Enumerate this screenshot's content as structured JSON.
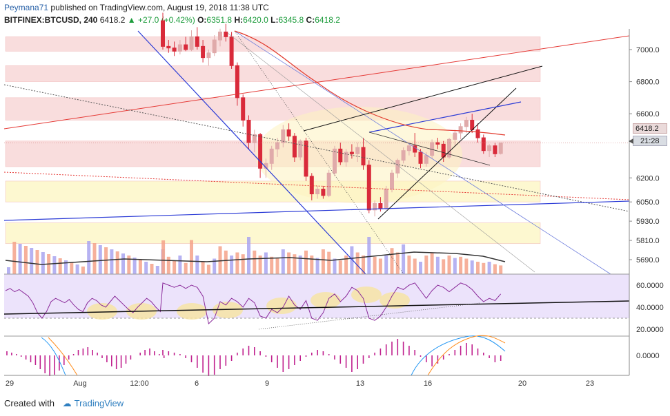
{
  "header": {
    "user": "Peymana71",
    "published": "published on TradingView.com, August 19, 2018 11:38 UTC",
    "symbol": "BITFINEX:BTCUSD, 240",
    "last": "6418.2",
    "change": "+27.0 (+0.42%)",
    "open_label": "O:",
    "open": "6351.8",
    "high_label": "H:",
    "high": "6420.0",
    "low_label": "L:",
    "low": "6345.8",
    "close_label": "C:",
    "close": "6418.2"
  },
  "price_badges": {
    "last_price": "6418.2",
    "countdown": "21:28"
  },
  "footer": {
    "created_with": "Created with",
    "brand": "TradingView"
  },
  "colors": {
    "up": "#e0aaaa",
    "down": "#d92a3a",
    "bull_band": "#f8d8d8",
    "yellow_band": "#fdf7c8",
    "rsi_bg": "#ece3fb",
    "rsi_line": "#8a2a9a",
    "macd_hist": "#c0208e",
    "ma": "#e23b2e"
  },
  "chart_data": {
    "type": "candlestick",
    "price_axis": {
      "ticks": [
        7000.0,
        6800.0,
        6600.0,
        6418.2,
        6200.0,
        6050.0,
        5930.0,
        5810.0,
        5690.0
      ]
    },
    "price_tick_labels": [
      "7000.0",
      "6800.0",
      "6600.0",
      "6200.0",
      "6050.0",
      "5930.0",
      "5810.0",
      "5690.0"
    ],
    "rsi_axis": {
      "ticks": [
        "60.0000",
        "40.0000",
        "20.0000"
      ]
    },
    "macd_axis": {
      "ticks": [
        "0.0000"
      ]
    },
    "x_tick_labels": [
      "29",
      "Aug",
      "12:00",
      "6",
      "9",
      "13",
      "16",
      "20",
      "23"
    ],
    "candles": [
      {
        "o": 7180,
        "h": 7230,
        "l": 7000,
        "c": 7020
      },
      {
        "o": 7020,
        "h": 7060,
        "l": 6980,
        "c": 7010
      },
      {
        "o": 7010,
        "h": 7050,
        "l": 6960,
        "c": 6990
      },
      {
        "o": 6990,
        "h": 7060,
        "l": 6970,
        "c": 7030
      },
      {
        "o": 7030,
        "h": 7080,
        "l": 6990,
        "c": 7000
      },
      {
        "o": 7000,
        "h": 7120,
        "l": 6990,
        "c": 7080
      },
      {
        "o": 7080,
        "h": 7140,
        "l": 7000,
        "c": 7020
      },
      {
        "o": 7020,
        "h": 7060,
        "l": 6920,
        "c": 6950
      },
      {
        "o": 6950,
        "h": 7000,
        "l": 6900,
        "c": 6980
      },
      {
        "o": 6980,
        "h": 7090,
        "l": 6960,
        "c": 7060
      },
      {
        "o": 7060,
        "h": 7130,
        "l": 7020,
        "c": 7110
      },
      {
        "o": 7110,
        "h": 7160,
        "l": 7050,
        "c": 7080
      },
      {
        "o": 7080,
        "h": 7110,
        "l": 6880,
        "c": 6900
      },
      {
        "o": 6900,
        "h": 6920,
        "l": 6650,
        "c": 6700
      },
      {
        "o": 6700,
        "h": 6720,
        "l": 6520,
        "c": 6560
      },
      {
        "o": 6560,
        "h": 6590,
        "l": 6380,
        "c": 6420
      },
      {
        "o": 6420,
        "h": 6500,
        "l": 6360,
        "c": 6470
      },
      {
        "o": 6470,
        "h": 6480,
        "l": 6200,
        "c": 6260
      },
      {
        "o": 6260,
        "h": 6320,
        "l": 6200,
        "c": 6290
      },
      {
        "o": 6290,
        "h": 6400,
        "l": 6250,
        "c": 6380
      },
      {
        "o": 6380,
        "h": 6450,
        "l": 6330,
        "c": 6420
      },
      {
        "o": 6420,
        "h": 6530,
        "l": 6390,
        "c": 6500
      },
      {
        "o": 6500,
        "h": 6540,
        "l": 6430,
        "c": 6460
      },
      {
        "o": 6460,
        "h": 6480,
        "l": 6300,
        "c": 6330
      },
      {
        "o": 6330,
        "h": 6440,
        "l": 6310,
        "c": 6430
      },
      {
        "o": 6430,
        "h": 6450,
        "l": 6180,
        "c": 6210
      },
      {
        "o": 6210,
        "h": 6230,
        "l": 6060,
        "c": 6100
      },
      {
        "o": 6100,
        "h": 6150,
        "l": 6070,
        "c": 6130
      },
      {
        "o": 6130,
        "h": 6150,
        "l": 6070,
        "c": 6090
      },
      {
        "o": 6090,
        "h": 6250,
        "l": 6080,
        "c": 6230
      },
      {
        "o": 6230,
        "h": 6400,
        "l": 6210,
        "c": 6380
      },
      {
        "o": 6380,
        "h": 6420,
        "l": 6280,
        "c": 6300
      },
      {
        "o": 6300,
        "h": 6380,
        "l": 6270,
        "c": 6360
      },
      {
        "o": 6360,
        "h": 6410,
        "l": 6320,
        "c": 6350
      },
      {
        "o": 6350,
        "h": 6420,
        "l": 6300,
        "c": 6390
      },
      {
        "o": 6390,
        "h": 6450,
        "l": 6250,
        "c": 6280
      },
      {
        "o": 6280,
        "h": 6310,
        "l": 5980,
        "c": 6000
      },
      {
        "o": 6000,
        "h": 6060,
        "l": 5960,
        "c": 6040
      },
      {
        "o": 6040,
        "h": 6080,
        "l": 5990,
        "c": 6010
      },
      {
        "o": 6010,
        "h": 6150,
        "l": 6000,
        "c": 6130
      },
      {
        "o": 6130,
        "h": 6250,
        "l": 6110,
        "c": 6230
      },
      {
        "o": 6230,
        "h": 6320,
        "l": 6200,
        "c": 6310
      },
      {
        "o": 6310,
        "h": 6390,
        "l": 6290,
        "c": 6370
      },
      {
        "o": 6370,
        "h": 6420,
        "l": 6340,
        "c": 6400
      },
      {
        "o": 6400,
        "h": 6480,
        "l": 6330,
        "c": 6360
      },
      {
        "o": 6360,
        "h": 6380,
        "l": 6260,
        "c": 6290
      },
      {
        "o": 6290,
        "h": 6360,
        "l": 6270,
        "c": 6340
      },
      {
        "o": 6340,
        "h": 6440,
        "l": 6320,
        "c": 6420
      },
      {
        "o": 6420,
        "h": 6450,
        "l": 6380,
        "c": 6410
      },
      {
        "o": 6410,
        "h": 6430,
        "l": 6300,
        "c": 6330
      },
      {
        "o": 6330,
        "h": 6450,
        "l": 6320,
        "c": 6440
      },
      {
        "o": 6440,
        "h": 6500,
        "l": 6400,
        "c": 6480
      },
      {
        "o": 6480,
        "h": 6540,
        "l": 6440,
        "c": 6520
      },
      {
        "o": 6520,
        "h": 6580,
        "l": 6480,
        "c": 6560
      },
      {
        "o": 6560,
        "h": 6600,
        "l": 6480,
        "c": 6500
      },
      {
        "o": 6500,
        "h": 6540,
        "l": 6420,
        "c": 6450
      },
      {
        "o": 6450,
        "h": 6470,
        "l": 6350,
        "c": 6370
      },
      {
        "o": 6370,
        "h": 6410,
        "l": 6330,
        "c": 6400
      },
      {
        "o": 6400,
        "h": 6420,
        "l": 6330,
        "c": 6350
      },
      {
        "o": 6351.8,
        "h": 6420.0,
        "l": 6345.8,
        "c": 6418.2
      }
    ],
    "volume": [
      40,
      28,
      22,
      30,
      18,
      55,
      30,
      20,
      15,
      25,
      45,
      38,
      30,
      35,
      32,
      60,
      38,
      30,
      35,
      28,
      26,
      40,
      35,
      32,
      30,
      38,
      30,
      26,
      40,
      36,
      25,
      22,
      30,
      45,
      35,
      30,
      60,
      28,
      25,
      30,
      42,
      35,
      48,
      30,
      25,
      20,
      30,
      35,
      28,
      24,
      30,
      26,
      28,
      25,
      22,
      20,
      18,
      20,
      16,
      14
    ],
    "rsi": [
      62,
      60,
      58,
      60,
      57,
      60,
      58,
      50,
      25,
      30,
      45,
      42,
      48,
      45,
      40,
      48,
      44,
      32,
      30,
      38,
      35,
      40,
      50,
      42,
      38,
      46,
      30,
      28,
      35,
      48,
      52,
      45,
      50,
      58,
      55,
      48,
      30,
      28,
      32,
      40,
      50,
      58,
      56,
      60,
      62,
      55,
      48,
      55,
      60,
      58,
      54,
      58,
      62,
      60,
      56,
      50,
      45,
      48,
      46,
      52
    ],
    "macd_hist": [
      8,
      6,
      4,
      2,
      -4,
      -10,
      -18,
      -25,
      -30,
      -28,
      -20,
      -15,
      -8,
      4,
      10,
      14,
      12,
      6,
      -2,
      -10,
      -18,
      -24,
      -20,
      -14,
      -8,
      -2,
      4,
      8,
      6,
      2,
      -6,
      -12,
      -18,
      -24,
      -20,
      -12,
      -4,
      4,
      10,
      16,
      20,
      24,
      20,
      14,
      8,
      -2,
      -10,
      -16,
      -12,
      -6,
      2,
      8,
      14,
      18,
      16,
      10,
      4,
      -4,
      -10,
      -8
    ]
  }
}
